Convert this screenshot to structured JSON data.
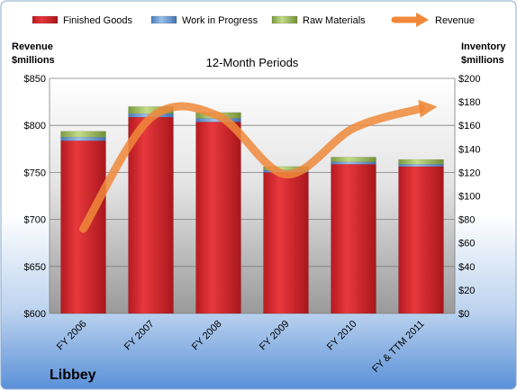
{
  "chart_data": {
    "type": "bar",
    "subtitle": "12-Month Periods",
    "company": "Libbey",
    "categories": [
      "FY 2006",
      "FY 2007",
      "FY 2008",
      "FY 2009",
      "FY 2010",
      "FY & TTM 2011"
    ],
    "left_axis": {
      "title_line1": "Revenue",
      "title_line2": "$millions",
      "ylim": [
        600,
        850
      ],
      "ticks": [
        600,
        650,
        700,
        750,
        800,
        850
      ],
      "tick_labels": [
        "$600",
        "$650",
        "$700",
        "$750",
        "$800",
        "$850"
      ]
    },
    "right_axis": {
      "title_line1": "Inventory",
      "title_line2": "$millions",
      "ylim": [
        0,
        200
      ],
      "ticks": [
        0,
        20,
        40,
        60,
        80,
        100,
        120,
        140,
        160,
        180,
        200
      ],
      "tick_labels": [
        "$0",
        "$20",
        "$40",
        "$60",
        "$80",
        "$100",
        "$120",
        "$140",
        "$160",
        "$180",
        "$200"
      ]
    },
    "series": [
      {
        "name": "Finished Goods",
        "axis": "right",
        "kind": "stacked-bar",
        "color": "#d42027",
        "values": [
          147,
          167,
          163,
          120,
          127,
          125
        ]
      },
      {
        "name": "Work in Progress",
        "axis": "right",
        "kind": "stacked-bar",
        "color": "#5b8fd0",
        "values": [
          3,
          3,
          3,
          2,
          2,
          2
        ]
      },
      {
        "name": "Raw Materials",
        "axis": "right",
        "kind": "stacked-bar",
        "color": "#9bbb59",
        "values": [
          5,
          6,
          5,
          3,
          4,
          4
        ]
      },
      {
        "name": "Revenue",
        "axis": "left",
        "kind": "line",
        "color": "#f0883a",
        "values": [
          690,
          808,
          810,
          748,
          797,
          818
        ]
      }
    ],
    "legend_position": "top",
    "grid": true
  }
}
